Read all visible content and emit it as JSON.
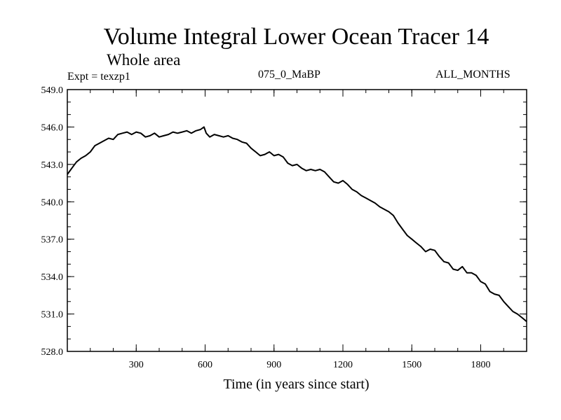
{
  "header": {
    "title": "Volume Integral Lower Ocean Tracer 14",
    "subtitle": "Whole area",
    "expt": "Expt = texzp1",
    "period": "075_0_MaBP",
    "months": "ALL_MONTHS"
  },
  "colors": {
    "line": "#000000",
    "axis": "#000000",
    "background": "#ffffff"
  },
  "chart_data": {
    "type": "line",
    "title": "Volume Integral Lower Ocean Tracer 14",
    "xlabel": "Time (in years since start)",
    "ylabel": "",
    "xlim": [
      0,
      2000
    ],
    "ylim": [
      528.0,
      549.0
    ],
    "xticks": [
      300,
      600,
      900,
      1200,
      1500,
      1800
    ],
    "xtick_labels": [
      "300",
      "600",
      "900",
      "1200",
      "1500",
      "1800"
    ],
    "yticks": [
      528.0,
      531.0,
      534.0,
      537.0,
      540.0,
      543.0,
      546.0,
      549.0
    ],
    "ytick_labels": [
      "528.0",
      "531.0",
      "534.0",
      "537.0",
      "540.0",
      "543.0",
      "546.0",
      "549.0"
    ],
    "x_minor_step": 100,
    "y_minor_step": 1,
    "series": [
      {
        "name": "texzp1",
        "x": [
          0,
          20,
          40,
          60,
          80,
          100,
          120,
          140,
          160,
          180,
          200,
          220,
          240,
          260,
          280,
          300,
          320,
          340,
          360,
          380,
          400,
          420,
          440,
          460,
          480,
          500,
          520,
          540,
          560,
          580,
          595,
          605,
          620,
          640,
          660,
          680,
          700,
          720,
          740,
          760,
          780,
          800,
          820,
          840,
          860,
          880,
          900,
          920,
          940,
          960,
          980,
          1000,
          1020,
          1040,
          1060,
          1080,
          1100,
          1120,
          1140,
          1160,
          1180,
          1200,
          1220,
          1240,
          1260,
          1280,
          1300,
          1320,
          1340,
          1360,
          1380,
          1400,
          1420,
          1440,
          1460,
          1480,
          1500,
          1520,
          1540,
          1560,
          1580,
          1600,
          1620,
          1640,
          1660,
          1680,
          1700,
          1720,
          1740,
          1760,
          1780,
          1800,
          1820,
          1840,
          1860,
          1880,
          1900,
          1920,
          1940,
          1960,
          1980,
          2000
        ],
        "y": [
          542.2,
          542.7,
          543.2,
          543.5,
          543.7,
          544.0,
          544.5,
          544.7,
          544.9,
          545.1,
          545.0,
          545.4,
          545.5,
          545.6,
          545.4,
          545.6,
          545.5,
          545.2,
          545.3,
          545.5,
          545.2,
          545.3,
          545.4,
          545.6,
          545.5,
          545.6,
          545.7,
          545.5,
          545.7,
          545.8,
          546.0,
          545.5,
          545.2,
          545.4,
          545.3,
          545.2,
          545.3,
          545.1,
          545.0,
          544.8,
          544.7,
          544.3,
          544.0,
          543.7,
          543.8,
          544.0,
          543.7,
          543.8,
          543.6,
          543.1,
          542.9,
          543.0,
          542.7,
          542.5,
          542.6,
          542.5,
          542.6,
          542.4,
          542.0,
          541.6,
          541.5,
          541.7,
          541.4,
          541.0,
          540.8,
          540.5,
          540.3,
          540.1,
          539.9,
          539.6,
          539.4,
          539.2,
          538.9,
          538.3,
          537.8,
          537.3,
          537.0,
          536.7,
          536.4,
          536.0,
          536.2,
          536.1,
          535.6,
          535.2,
          535.1,
          534.6,
          534.5,
          534.8,
          534.3,
          534.3,
          534.1,
          533.6,
          533.4,
          532.8,
          532.6,
          532.5,
          532.0,
          531.6,
          531.2,
          531.0,
          530.7,
          530.4
        ]
      }
    ]
  }
}
